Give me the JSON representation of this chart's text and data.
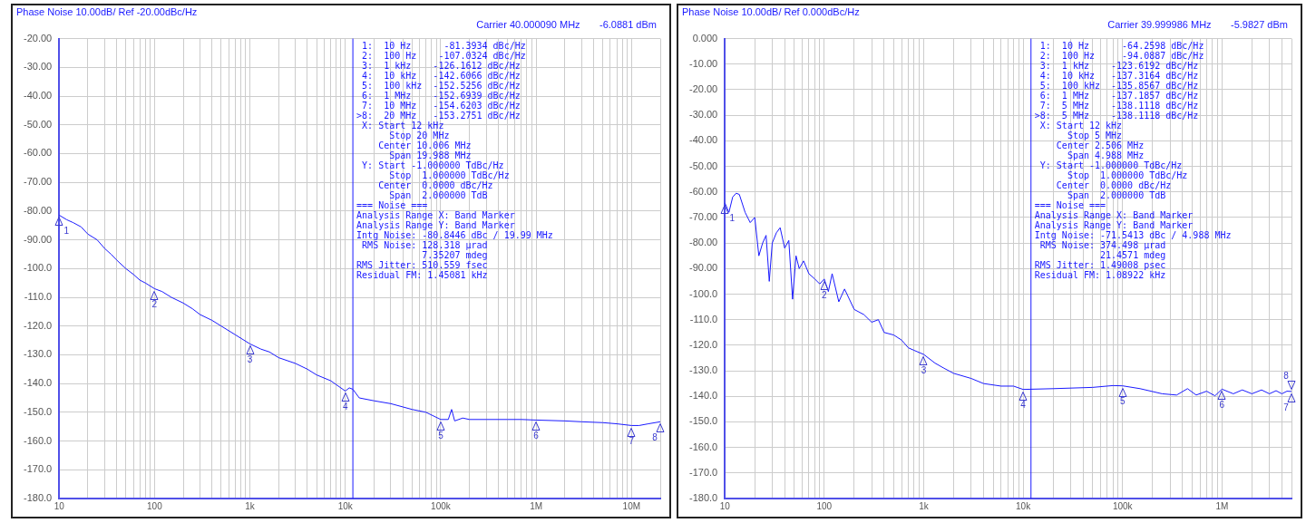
{
  "chart_data": [
    {
      "type": "line",
      "title": "Phase Noise 10.00dB/ Ref -20.00dBc/Hz",
      "subtitle": "Carrier 40.000090 MHz",
      "annotations": [
        "-6.0881 dBm",
        " 1:  10 Hz      -81.3934 dBc/Hz",
        " 2:  100 Hz    -107.0324 dBc/Hz",
        " 3:  1 kHz    -126.1612 dBc/Hz",
        " 4:  10 kHz   -142.6066 dBc/Hz",
        " 5:  100 kHz  -152.5256 dBc/Hz",
        " 6:  1 MHz    -152.6939 dBc/Hz",
        " 7:  10 MHz   -154.6203 dBc/Hz",
        ">8:  20 MHz   -153.2751 dBc/Hz",
        " X: Start 12 kHz",
        "      Stop 20 MHz",
        "    Center 10.006 MHz",
        "      Span 19.988 MHz",
        " Y: Start -1.000000 TdBc/Hz",
        "      Stop  1.000000 TdBc/Hz",
        "    Center  0.0000 dBc/Hz",
        "      Span  2.000000 TdB",
        "=== Noise ===",
        "Analysis Range X: Band Marker",
        "Analysis Range Y: Band Marker",
        "Intg Noise: -80.8446 dBc / 19.99 MHz",
        " RMS Noise: 128.318 µrad",
        "            7.35207 mdeg",
        "RMS Jitter: 510.559 fsec",
        "Residual FM: 1.45081 kHz",
        {
          "text": "1",
          "x": 10,
          "y": -81.3934
        },
        {
          "text": "2",
          "x": 100,
          "y": -107.0324
        },
        {
          "text": "3",
          "x": 1000,
          "y": -126.1612
        },
        {
          "text": "4",
          "x": 10000,
          "y": -142.6066
        },
        {
          "text": "5",
          "x": 100000,
          "y": -152.5256
        },
        {
          "text": "6",
          "x": 1000000,
          "y": -152.6939
        },
        {
          "text": "7",
          "x": 10000000,
          "y": -154.6203
        },
        {
          "text": "8",
          "x": 20000000,
          "y": -153.2751
        }
      ],
      "x": [
        10,
        12,
        14,
        17,
        20,
        25,
        30,
        35,
        40,
        50,
        60,
        70,
        80,
        100,
        120,
        150,
        200,
        250,
        300,
        400,
        500,
        700,
        1000,
        1300,
        1600,
        2000,
        3000,
        4000,
        5000,
        7000,
        10000,
        11000,
        12000,
        14000,
        20000,
        30000,
        50000,
        70000,
        100000,
        120000,
        130000,
        140000,
        170000,
        200000,
        300000,
        500000,
        700000,
        1000000,
        2000000,
        3000000,
        5000000,
        7000000,
        10000000,
        12000000,
        15000000,
        20000000
      ],
      "series": [
        {
          "color": "#1a1aff",
          "values": [
            -81.4,
            -83,
            -84,
            -85.5,
            -88,
            -90,
            -93,
            -95,
            -97,
            -100,
            -102,
            -104,
            -105,
            -107,
            -108,
            -110,
            -112,
            -114,
            -116,
            -118,
            -120,
            -123,
            -126.2,
            -128,
            -129,
            -131,
            -133,
            -135,
            -137,
            -139,
            -142.6,
            -141.5,
            -142,
            -145,
            -146,
            -147,
            -149,
            -150,
            -152.5,
            -152.5,
            -149,
            -153,
            -152,
            -152.5,
            -152.5,
            -152.5,
            -152.5,
            -152.7,
            -153,
            -153.3,
            -153.6,
            -154,
            -154.6,
            -154.6,
            -154,
            -153.3
          ]
        }
      ],
      "xlim": [
        10,
        20000000
      ],
      "ylim": [
        -180,
        -20
      ],
      "xticks": [
        {
          "value": 10,
          "label": "10"
        },
        {
          "value": 20,
          "label": null
        },
        {
          "value": 30,
          "label": null
        },
        {
          "value": 40,
          "label": null
        },
        {
          "value": 50,
          "label": null
        },
        {
          "value": 60,
          "label": null
        },
        {
          "value": 70,
          "label": null
        },
        {
          "value": 80,
          "label": null
        },
        {
          "value": 90,
          "label": null
        },
        {
          "value": 100,
          "label": "100"
        },
        {
          "value": 200,
          "label": null
        },
        {
          "value": 300,
          "label": null
        },
        {
          "value": 400,
          "label": null
        },
        {
          "value": 500,
          "label": null
        },
        {
          "value": 600,
          "label": null
        },
        {
          "value": 700,
          "label": null
        },
        {
          "value": 800,
          "label": null
        },
        {
          "value": 900,
          "label": null
        },
        {
          "value": 1000,
          "label": "1k"
        },
        {
          "value": 2000,
          "label": null
        },
        {
          "value": 3000,
          "label": null
        },
        {
          "value": 4000,
          "label": null
        },
        {
          "value": 5000,
          "label": null
        },
        {
          "value": 6000,
          "label": null
        },
        {
          "value": 7000,
          "label": null
        },
        {
          "value": 8000,
          "label": null
        },
        {
          "value": 9000,
          "label": null
        },
        {
          "value": 10000,
          "label": "10k"
        },
        {
          "value": 20000,
          "label": null
        },
        {
          "value": 30000,
          "label": null
        },
        {
          "value": 40000,
          "label": null
        },
        {
          "value": 50000,
          "label": null
        },
        {
          "value": 60000,
          "label": null
        },
        {
          "value": 70000,
          "label": null
        },
        {
          "value": 80000,
          "label": null
        },
        {
          "value": 90000,
          "label": null
        },
        {
          "value": 100000,
          "label": "100k"
        },
        {
          "value": 200000,
          "label": null
        },
        {
          "value": 300000,
          "label": null
        },
        {
          "value": 400000,
          "label": null
        },
        {
          "value": 500000,
          "label": null
        },
        {
          "value": 600000,
          "label": null
        },
        {
          "value": 700000,
          "label": null
        },
        {
          "value": 800000,
          "label": null
        },
        {
          "value": 900000,
          "label": null
        },
        {
          "value": 1000000,
          "label": "1M"
        },
        {
          "value": 2000000,
          "label": null
        },
        {
          "value": 3000000,
          "label": null
        },
        {
          "value": 4000000,
          "label": null
        },
        {
          "value": 5000000,
          "label": null
        },
        {
          "value": 6000000,
          "label": null
        },
        {
          "value": 7000000,
          "label": null
        },
        {
          "value": 8000000,
          "label": null
        },
        {
          "value": 9000000,
          "label": null
        },
        {
          "value": 10000000,
          "label": "10M"
        },
        {
          "value": 20000000,
          "label": null
        }
      ],
      "yticks": [
        {
          "value": -20,
          "label": "-20.00"
        },
        {
          "value": -30,
          "label": "-30.00"
        },
        {
          "value": -40,
          "label": "-40.00"
        },
        {
          "value": -50,
          "label": "-50.00"
        },
        {
          "value": -60,
          "label": "-60.00"
        },
        {
          "value": -70,
          "label": "-70.00"
        },
        {
          "value": -80,
          "label": "-80.00"
        },
        {
          "value": -90,
          "label": "-90.00"
        },
        {
          "value": -100,
          "label": "-100.0"
        },
        {
          "value": -110,
          "label": "-110.0"
        },
        {
          "value": -120,
          "label": "-120.0"
        },
        {
          "value": -130,
          "label": "-130.0"
        },
        {
          "value": -140,
          "label": "-140.0"
        },
        {
          "value": -150,
          "label": "-150.0"
        },
        {
          "value": -160,
          "label": "-160.0"
        },
        {
          "value": -170,
          "label": "-170.0"
        },
        {
          "value": -180,
          "label": "-180.0"
        }
      ],
      "log": "x",
      "grid": true,
      "legend": false,
      "marker": "none",
      "line_style": "solid",
      "ref_lines": [
        {
          "axis": "x",
          "value": 12000,
          "label": null,
          "color": "#1a1aff"
        }
      ]
    },
    {
      "type": "line",
      "title": "Phase Noise 10.00dB/ Ref 0.000dBc/Hz",
      "subtitle": "Carrier 39.999986 MHz",
      "annotations": [
        "-5.9827 dBm",
        " 1:  10 Hz      -64.2598 dBc/Hz",
        " 2:  100 Hz     -94.0887 dBc/Hz",
        " 3:  1 kHz    -123.6192 dBc/Hz",
        " 4:  10 kHz   -137.3164 dBc/Hz",
        " 5:  100 kHz  -135.8567 dBc/Hz",
        " 6:  1 MHz    -137.1857 dBc/Hz",
        " 7:  5 MHz    -138.1118 dBc/Hz",
        ">8:  5 MHz    -138.1118 dBc/Hz",
        " X: Start 12 kHz",
        "      Stop 5 MHz",
        "    Center 2.506 MHz",
        "      Span 4.988 MHz",
        " Y: Start -1.000000 TdBc/Hz",
        "      Stop  1.000000 TdBc/Hz",
        "    Center  0.0000 dBc/Hz",
        "      Span  2.000000 TdB",
        "=== Noise ===",
        "Analysis Range X: Band Marker",
        "Analysis Range Y: Band Marker",
        "Intg Noise: -71.5413 dBc / 4.988 MHz",
        " RMS Noise: 374.498 µrad",
        "            21.4571 mdeg",
        "RMS Jitter: 1.49008 psec",
        "Residual FM: 1.08922 kHz",
        {
          "text": "1",
          "x": 10,
          "y": -64.2598
        },
        {
          "text": "2",
          "x": 100,
          "y": -94.0887
        },
        {
          "text": "3",
          "x": 1000,
          "y": -123.6192
        },
        {
          "text": "4",
          "x": 10000,
          "y": -137.3164
        },
        {
          "text": "5",
          "x": 100000,
          "y": -135.8567
        },
        {
          "text": "6",
          "x": 1000000,
          "y": -137.1857
        },
        {
          "text": "7",
          "x": 5000000,
          "y": -138.1118
        },
        {
          "text": "8",
          "x": 5000000,
          "y": -138.1118
        }
      ],
      "x": [
        10,
        11,
        12,
        13,
        14,
        16,
        18,
        20,
        22,
        24,
        26,
        28,
        30,
        33,
        36,
        40,
        44,
        48,
        52,
        56,
        62,
        70,
        80,
        90,
        100,
        110,
        120,
        140,
        160,
        200,
        250,
        300,
        350,
        400,
        500,
        600,
        700,
        800,
        1000,
        1300,
        1600,
        2000,
        3000,
        4000,
        6000,
        8000,
        10000,
        20000,
        50000,
        80000,
        100000,
        150000,
        250000,
        350000,
        450000,
        550000,
        700000,
        850000,
        1000000,
        1300000,
        1600000,
        2000000,
        2500000,
        3000000,
        3500000,
        4000000,
        4500000,
        5000000
      ],
      "series": [
        {
          "color": "#1a1aff",
          "values": [
            -64.3,
            -68,
            -62,
            -60.5,
            -61,
            -68,
            -72,
            -70,
            -85,
            -80,
            -77,
            -95,
            -80,
            -76,
            -74,
            -82,
            -79,
            -102,
            -85,
            -90,
            -87,
            -92,
            -94,
            -96,
            -94.1,
            -99,
            -92,
            -103,
            -98,
            -106,
            -108,
            -111,
            -110,
            -115,
            -116,
            -118,
            -121,
            -122,
            -123.6,
            -127,
            -129,
            -131,
            -133,
            -135,
            -136,
            -136,
            -137.3,
            -137,
            -136.5,
            -135.8,
            -135.9,
            -137,
            -139,
            -139.5,
            -137,
            -139.5,
            -138,
            -139.8,
            -137.2,
            -139,
            -137.5,
            -139,
            -137.5,
            -139,
            -137.8,
            -139,
            -138,
            -138.1
          ]
        }
      ],
      "xlim": [
        10,
        5000000
      ],
      "ylim": [
        -180,
        0
      ],
      "xticks": [
        {
          "value": 10,
          "label": "10"
        },
        {
          "value": 20,
          "label": null
        },
        {
          "value": 30,
          "label": null
        },
        {
          "value": 40,
          "label": null
        },
        {
          "value": 50,
          "label": null
        },
        {
          "value": 60,
          "label": null
        },
        {
          "value": 70,
          "label": null
        },
        {
          "value": 80,
          "label": null
        },
        {
          "value": 90,
          "label": null
        },
        {
          "value": 100,
          "label": "100"
        },
        {
          "value": 200,
          "label": null
        },
        {
          "value": 300,
          "label": null
        },
        {
          "value": 400,
          "label": null
        },
        {
          "value": 500,
          "label": null
        },
        {
          "value": 600,
          "label": null
        },
        {
          "value": 700,
          "label": null
        },
        {
          "value": 800,
          "label": null
        },
        {
          "value": 900,
          "label": null
        },
        {
          "value": 1000,
          "label": "1k"
        },
        {
          "value": 2000,
          "label": null
        },
        {
          "value": 3000,
          "label": null
        },
        {
          "value": 4000,
          "label": null
        },
        {
          "value": 5000,
          "label": null
        },
        {
          "value": 6000,
          "label": null
        },
        {
          "value": 7000,
          "label": null
        },
        {
          "value": 8000,
          "label": null
        },
        {
          "value": 9000,
          "label": null
        },
        {
          "value": 10000,
          "label": "10k"
        },
        {
          "value": 20000,
          "label": null
        },
        {
          "value": 30000,
          "label": null
        },
        {
          "value": 40000,
          "label": null
        },
        {
          "value": 50000,
          "label": null
        },
        {
          "value": 60000,
          "label": null
        },
        {
          "value": 70000,
          "label": null
        },
        {
          "value": 80000,
          "label": null
        },
        {
          "value": 90000,
          "label": null
        },
        {
          "value": 100000,
          "label": "100k"
        },
        {
          "value": 200000,
          "label": null
        },
        {
          "value": 300000,
          "label": null
        },
        {
          "value": 400000,
          "label": null
        },
        {
          "value": 500000,
          "label": null
        },
        {
          "value": 600000,
          "label": null
        },
        {
          "value": 700000,
          "label": null
        },
        {
          "value": 800000,
          "label": null
        },
        {
          "value": 900000,
          "label": null
        },
        {
          "value": 1000000,
          "label": "1M"
        },
        {
          "value": 2000000,
          "label": null
        },
        {
          "value": 3000000,
          "label": null
        },
        {
          "value": 4000000,
          "label": null
        },
        {
          "value": 5000000,
          "label": null
        }
      ],
      "yticks": [
        {
          "value": 0,
          "label": "0.000"
        },
        {
          "value": -10,
          "label": "-10.00"
        },
        {
          "value": -20,
          "label": "-20.00"
        },
        {
          "value": -30,
          "label": "-30.00"
        },
        {
          "value": -40,
          "label": "-40.00"
        },
        {
          "value": -50,
          "label": "-50.00"
        },
        {
          "value": -60,
          "label": "-60.00"
        },
        {
          "value": -70,
          "label": "-70.00"
        },
        {
          "value": -80,
          "label": "-80.00"
        },
        {
          "value": -90,
          "label": "-90.00"
        },
        {
          "value": -100,
          "label": "-100.0"
        },
        {
          "value": -110,
          "label": "-110.0"
        },
        {
          "value": -120,
          "label": "-120.0"
        },
        {
          "value": -130,
          "label": "-130.0"
        },
        {
          "value": -140,
          "label": "-140.0"
        },
        {
          "value": -150,
          "label": "-150.0"
        },
        {
          "value": -160,
          "label": "-160.0"
        },
        {
          "value": -170,
          "label": "-170.0"
        },
        {
          "value": -180,
          "label": "-180.0"
        }
      ],
      "log": "x",
      "grid": true,
      "legend": false,
      "marker": "none",
      "line_style": "solid",
      "ref_lines": [
        {
          "axis": "x",
          "value": 12000,
          "label": null,
          "color": "#1a1aff"
        }
      ]
    }
  ]
}
